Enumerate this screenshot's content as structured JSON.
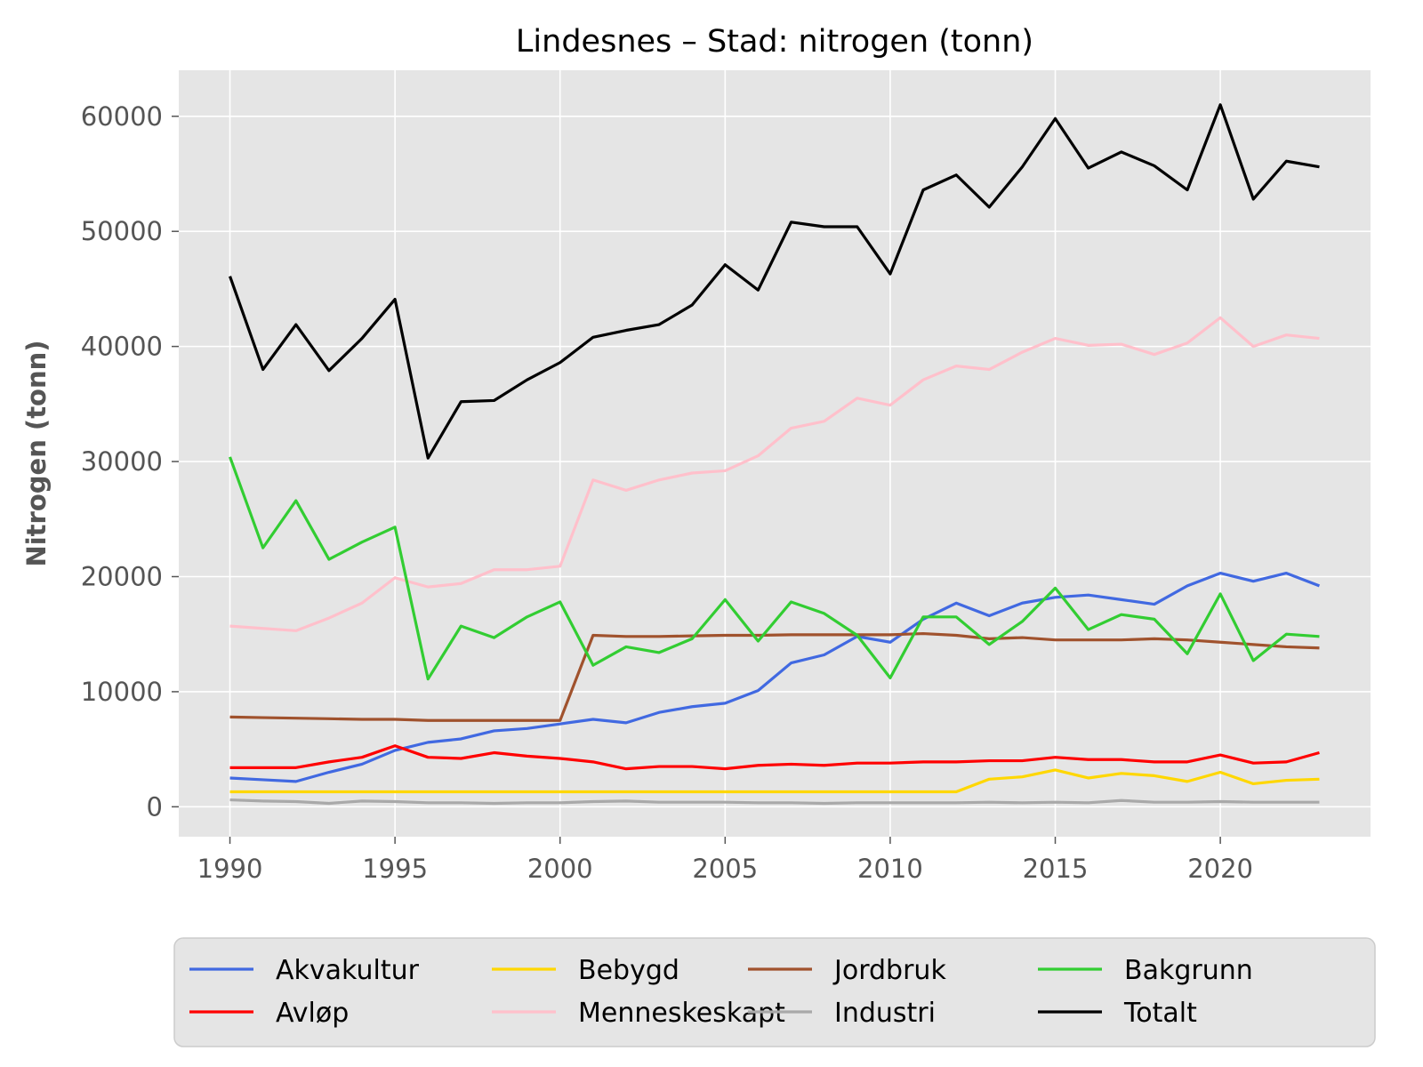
{
  "chart_data": {
    "type": "line",
    "title": "Lindesnes – Stad: nitrogen (tonn)",
    "xlabel": "",
    "ylabel": "Nitrogen (tonn)",
    "xlim": [
      1988.45,
      2024.55
    ],
    "ylim": [
      -2600,
      64000
    ],
    "xticks": [
      "1990",
      "1995",
      "2000",
      "2005",
      "2010",
      "2015",
      "2020"
    ],
    "yticks": [
      "0",
      "10000",
      "20000",
      "30000",
      "40000",
      "50000",
      "60000"
    ],
    "grid": true,
    "legend_position": "bottom",
    "x": [
      1990,
      1991,
      1992,
      1993,
      1994,
      1995,
      1996,
      1997,
      1998,
      1999,
      2000,
      2001,
      2002,
      2003,
      2004,
      2005,
      2006,
      2007,
      2008,
      2009,
      2010,
      2011,
      2012,
      2013,
      2014,
      2015,
      2016,
      2017,
      2018,
      2019,
      2020,
      2021,
      2022,
      2023
    ],
    "series": [
      {
        "name": "Akvakultur",
        "color": "#4169e1",
        "values": [
          2500,
          2350,
          2200,
          3000,
          3700,
          4900,
          5600,
          5900,
          6600,
          6800,
          7200,
          7600,
          7300,
          8200,
          8700,
          9000,
          10100,
          12500,
          13200,
          14800,
          14300,
          16300,
          17700,
          16600,
          17700,
          18200,
          18400,
          18000,
          17600,
          19200,
          20300,
          19600,
          20300,
          19200
        ]
      },
      {
        "name": "Avløp",
        "color": "#ff0000",
        "values": [
          3400,
          3400,
          3400,
          3900,
          4300,
          5300,
          4300,
          4200,
          4700,
          4400,
          4200,
          3900,
          3300,
          3500,
          3500,
          3300,
          3600,
          3700,
          3600,
          3800,
          3800,
          3900,
          3900,
          4000,
          4000,
          4300,
          4100,
          4100,
          3900,
          3900,
          4500,
          3800,
          3900,
          4700
        ]
      },
      {
        "name": "Bebygd",
        "color": "#ffd700",
        "values": [
          1300,
          1300,
          1300,
          1300,
          1300,
          1300,
          1300,
          1300,
          1300,
          1300,
          1300,
          1300,
          1300,
          1300,
          1300,
          1300,
          1300,
          1300,
          1300,
          1300,
          1300,
          1300,
          1300,
          2400,
          2600,
          3200,
          2500,
          2900,
          2700,
          2200,
          3000,
          2000,
          2300,
          2400
        ]
      },
      {
        "name": "Menneskeskapt",
        "color": "#ffc0cb",
        "values": [
          15700,
          15500,
          15300,
          16400,
          17700,
          19900,
          19100,
          19400,
          20600,
          20600,
          20900,
          28400,
          27500,
          28400,
          29000,
          29200,
          30500,
          32900,
          33500,
          35500,
          34900,
          37100,
          38300,
          38000,
          39500,
          40700,
          40100,
          40200,
          39300,
          40300,
          42500,
          40000,
          41000,
          40700
        ]
      },
      {
        "name": "Jordbruk",
        "color": "#a0522d",
        "values": [
          7800,
          7750,
          7700,
          7650,
          7600,
          7600,
          7500,
          7500,
          7500,
          7500,
          7500,
          14900,
          14800,
          14800,
          14850,
          14900,
          14900,
          14950,
          14950,
          14950,
          14950,
          15050,
          14900,
          14600,
          14700,
          14500,
          14500,
          14500,
          14600,
          14500,
          14300,
          14100,
          13900,
          13800
        ]
      },
      {
        "name": "Industri",
        "color": "#a9a9a9",
        "values": [
          600,
          500,
          450,
          300,
          500,
          450,
          350,
          350,
          300,
          350,
          350,
          450,
          500,
          400,
          400,
          400,
          350,
          350,
          300,
          350,
          350,
          350,
          350,
          400,
          350,
          400,
          350,
          550,
          400,
          400,
          450,
          400,
          400,
          400
        ]
      },
      {
        "name": "Bakgrunn",
        "color": "#32cd32",
        "values": [
          30400,
          22500,
          26600,
          21500,
          23000,
          24300,
          11100,
          15700,
          14700,
          16500,
          17800,
          12300,
          13900,
          13400,
          14600,
          18000,
          14400,
          17800,
          16800,
          14900,
          11200,
          16500,
          16500,
          14100,
          16100,
          19000,
          15400,
          16700,
          16300,
          13300,
          18500,
          12700,
          15000,
          14800
        ]
      },
      {
        "name": "Totalt",
        "color": "#000000",
        "values": [
          46100,
          38000,
          41900,
          37900,
          40700,
          44100,
          30300,
          35200,
          35300,
          37100,
          38600,
          40800,
          41400,
          41900,
          43600,
          47100,
          44900,
          50800,
          50400,
          50400,
          46300,
          53600,
          54900,
          52100,
          55600,
          59800,
          55500,
          56900,
          55700,
          53600,
          61000,
          52800,
          56100,
          55600
        ]
      }
    ]
  }
}
